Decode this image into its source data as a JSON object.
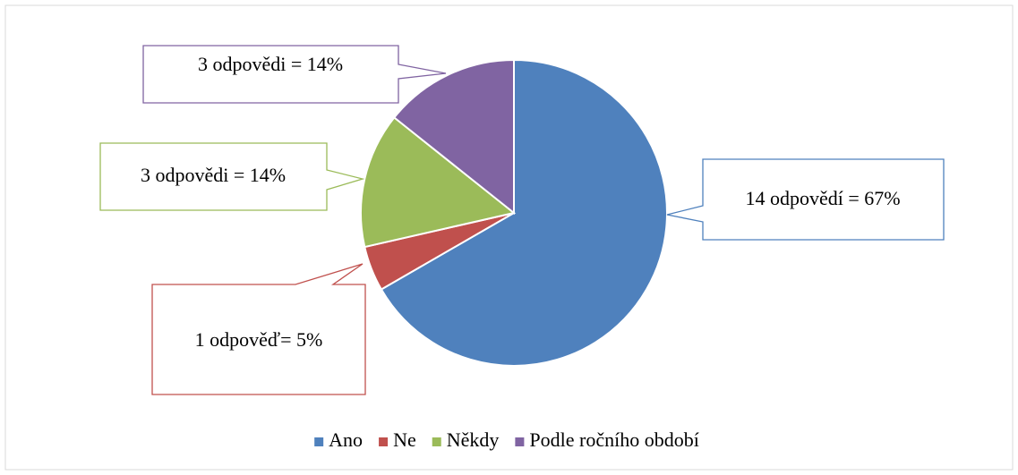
{
  "chart_data": {
    "type": "pie",
    "categories": [
      "Ano",
      "Ne",
      "Někdy",
      "Podle ročního období"
    ],
    "values": [
      14,
      1,
      3,
      3
    ],
    "value_labels": [
      "14 odpovědí = 67%",
      "1 odpověď= 5%",
      "3 odpovědi = 14%",
      "3 odpovědi = 14%"
    ],
    "colors": [
      "#4f81bd",
      "#c0504d",
      "#9bbb59",
      "#8064a2"
    ],
    "legend": "bottom"
  }
}
